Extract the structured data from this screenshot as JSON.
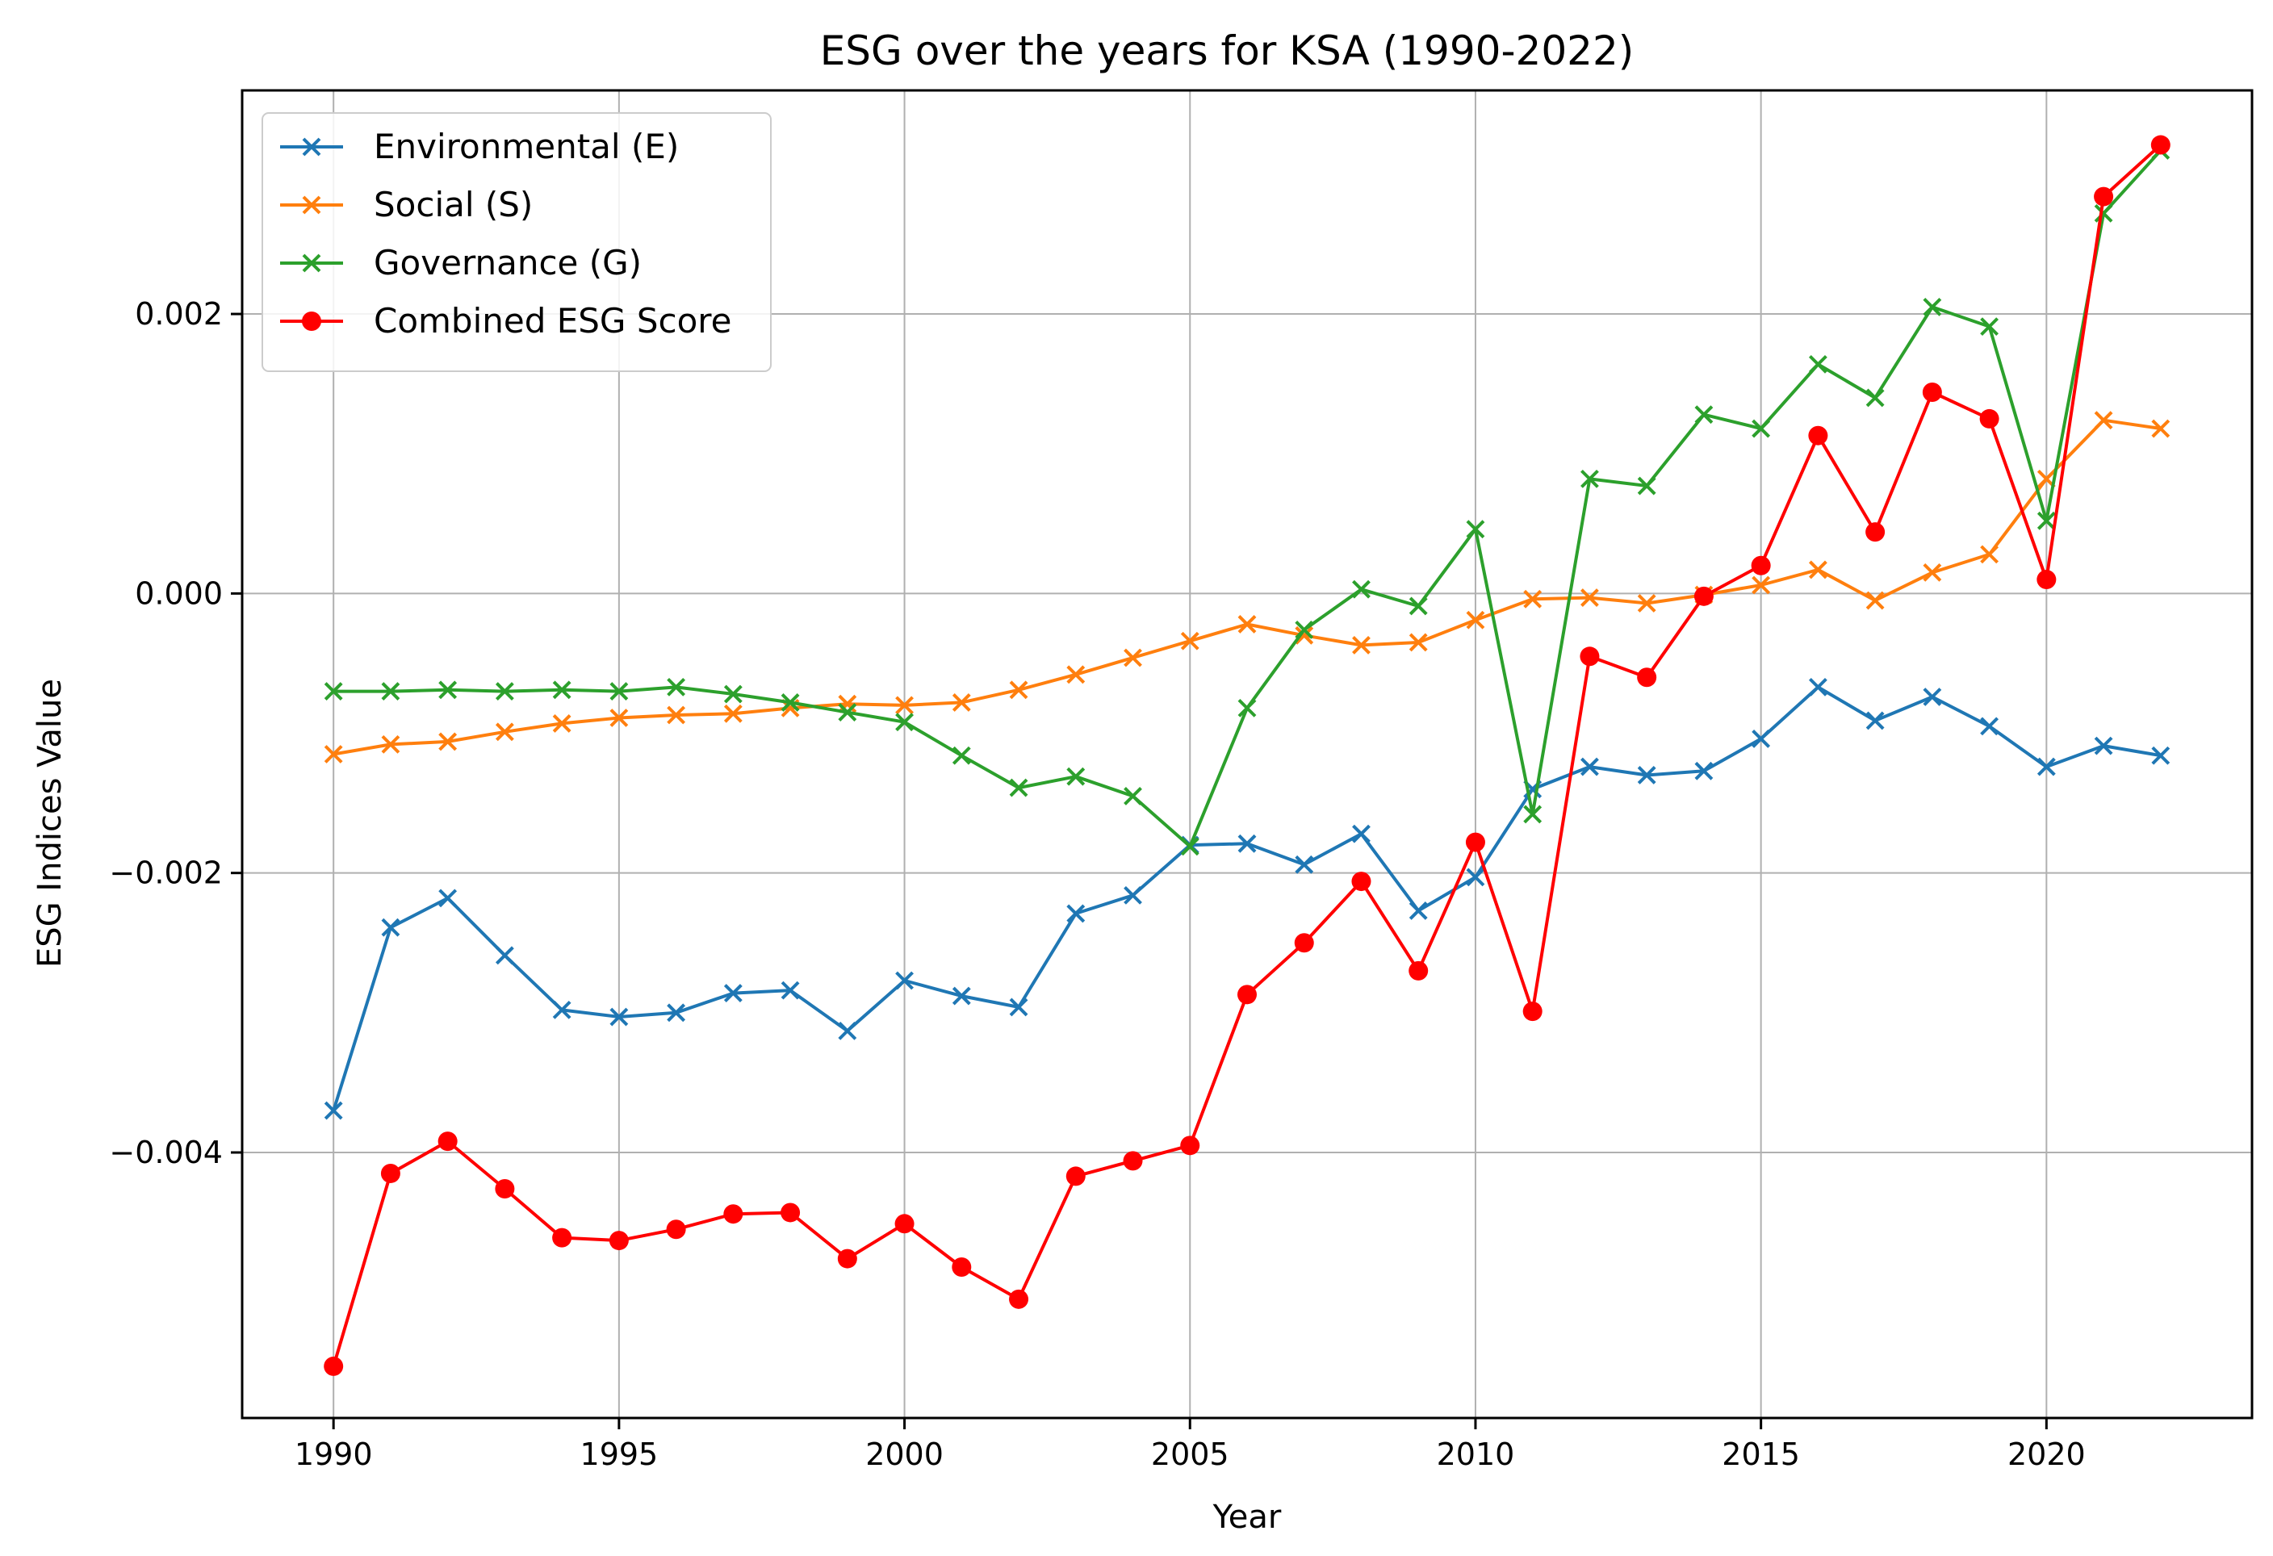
{
  "chart_data": {
    "type": "line",
    "title": "ESG over the years for KSA (1990-2022)",
    "xlabel": "Year",
    "ylabel": "ESG Indices Value",
    "xlim": [
      1988.4,
      2023.6
    ],
    "ylim": [
      -0.0059,
      0.0036
    ],
    "grid": true,
    "legend_position": "top-left",
    "x": [
      1990,
      1991,
      1992,
      1993,
      1994,
      1995,
      1996,
      1997,
      1998,
      1999,
      2000,
      2001,
      2002,
      2003,
      2004,
      2005,
      2006,
      2007,
      2008,
      2009,
      2010,
      2011,
      2012,
      2013,
      2014,
      2015,
      2016,
      2017,
      2018,
      2019,
      2020,
      2021,
      2022
    ],
    "x_ticks": [
      {
        "value": 1990,
        "label": "1990"
      },
      {
        "value": 1995,
        "label": "1995"
      },
      {
        "value": 2000,
        "label": "2000"
      },
      {
        "value": 2005,
        "label": "2005"
      },
      {
        "value": 2010,
        "label": "2010"
      },
      {
        "value": 2015,
        "label": "2015"
      },
      {
        "value": 2020,
        "label": "2020"
      }
    ],
    "y_ticks": [
      {
        "value": 0.002,
        "label": "0.002"
      },
      {
        "value": 0.0,
        "label": "0.000"
      },
      {
        "value": -0.002,
        "label": "−0.002"
      },
      {
        "value": -0.004,
        "label": "−0.004"
      }
    ],
    "series": [
      {
        "name": "Environmental (E)",
        "color": "#1f77b4",
        "marker": "x",
        "values": [
          -0.0037,
          -0.00239,
          -0.00218,
          -0.00259,
          -0.00298,
          -0.00303,
          -0.003,
          -0.00286,
          -0.00284,
          -0.00313,
          -0.00277,
          -0.00288,
          -0.00296,
          -0.00229,
          -0.00216,
          -0.0018,
          -0.00179,
          -0.00194,
          -0.00172,
          -0.00227,
          -0.00203,
          -0.0014,
          -0.00124,
          -0.0013,
          -0.00127,
          -0.00104,
          -0.00067,
          -0.00091,
          -0.00074,
          -0.00095,
          -0.00124,
          -0.00109,
          -0.00116
        ]
      },
      {
        "name": "Social (S)",
        "color": "#ff7f0e",
        "marker": "x",
        "values": [
          -0.00115,
          -0.00108,
          -0.00106,
          -0.00099,
          -0.00093,
          -0.00089,
          -0.00087,
          -0.00086,
          -0.00082,
          -0.00079,
          -0.0008,
          -0.00078,
          -0.00069,
          -0.00058,
          -0.00046,
          -0.00034,
          -0.00022,
          -0.0003,
          -0.00037,
          -0.00035,
          -0.00019,
          -4e-05,
          -3e-05,
          -7e-05,
          -1e-05,
          6e-05,
          0.00017,
          -5e-05,
          0.00015,
          0.00028,
          0.00082,
          0.00124,
          0.00118
        ]
      },
      {
        "name": "Governance (G)",
        "color": "#2ca02c",
        "marker": "x",
        "values": [
          -0.0007,
          -0.0007,
          -0.00069,
          -0.0007,
          -0.00069,
          -0.0007,
          -0.00067,
          -0.00072,
          -0.00078,
          -0.00085,
          -0.00092,
          -0.00116,
          -0.00139,
          -0.00131,
          -0.00145,
          -0.00181,
          -0.00082,
          -0.00026,
          3e-05,
          -9e-05,
          0.00046,
          -0.00158,
          0.00082,
          0.00077,
          0.00128,
          0.00118,
          0.00164,
          0.0014,
          0.00205,
          0.00191,
          0.00052,
          0.00272,
          0.00317
        ]
      },
      {
        "name": "Combined ESG Score",
        "color": "#ff0000",
        "marker": "o",
        "values": [
          -0.00553,
          -0.00415,
          -0.00392,
          -0.00426,
          -0.00461,
          -0.00463,
          -0.00455,
          -0.00444,
          -0.00443,
          -0.00476,
          -0.00451,
          -0.00482,
          -0.00505,
          -0.00417,
          -0.00406,
          -0.00395,
          -0.00287,
          -0.0025,
          -0.00206,
          -0.0027,
          -0.00178,
          -0.00299,
          -0.00045,
          -0.0006,
          -2e-05,
          0.0002,
          0.00113,
          0.00044,
          0.00144,
          0.00125,
          0.0001,
          0.00284,
          0.00321
        ]
      }
    ]
  }
}
